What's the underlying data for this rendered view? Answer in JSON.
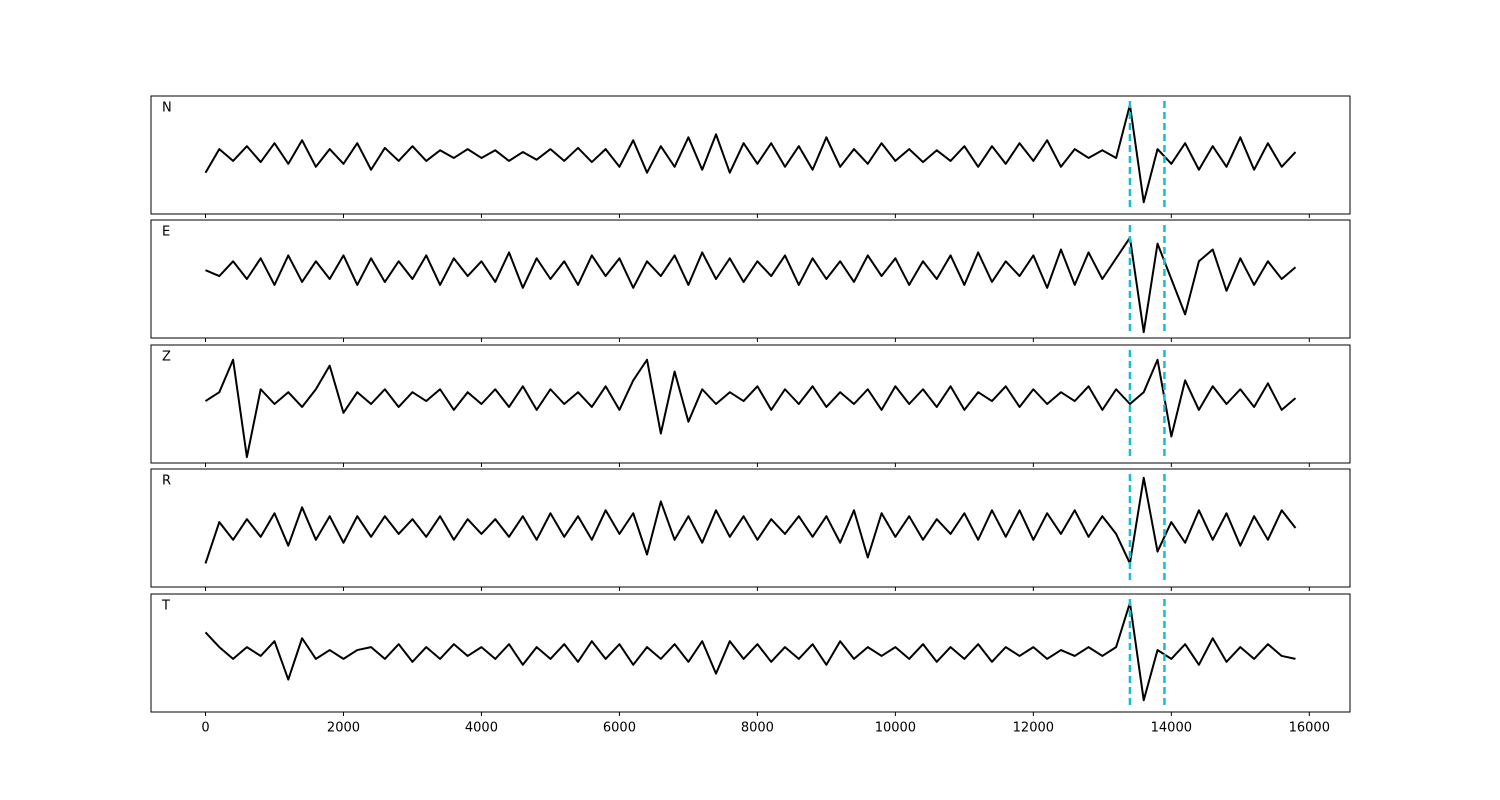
{
  "chart_data": {
    "type": "line",
    "xlim": [
      -790,
      16590
    ],
    "xticks": [
      0,
      2000,
      4000,
      6000,
      8000,
      10000,
      12000,
      14000,
      16000
    ],
    "ylim": [
      -1,
      1
    ],
    "color": "#000000",
    "vlines": [
      13400,
      13900
    ],
    "vline_color": "#17becf",
    "x": [
      0,
      200,
      400,
      600,
      800,
      1000,
      1200,
      1400,
      1600,
      1800,
      2000,
      2200,
      2400,
      2600,
      2800,
      3000,
      3200,
      3400,
      3600,
      3800,
      4000,
      4200,
      4400,
      4600,
      4800,
      5000,
      5200,
      5400,
      5600,
      5800,
      6000,
      6200,
      6400,
      6600,
      6800,
      7000,
      7200,
      7400,
      7600,
      7800,
      8000,
      8200,
      8400,
      8600,
      8800,
      9000,
      9200,
      9400,
      9600,
      9800,
      10000,
      10200,
      10400,
      10600,
      10800,
      11000,
      11200,
      11400,
      11600,
      11800,
      12000,
      12200,
      12400,
      12600,
      12800,
      13000,
      13200,
      13400,
      13600,
      13800,
      14000,
      14200,
      14400,
      14600,
      14800,
      15000,
      15200,
      15400,
      15600,
      15800
    ],
    "series": [
      {
        "name": "N",
        "values": [
          -0.3,
          0.1,
          -0.1,
          0.15,
          -0.12,
          0.2,
          -0.15,
          0.25,
          -0.2,
          0.1,
          -0.15,
          0.2,
          -0.25,
          0.12,
          -0.1,
          0.15,
          -0.1,
          0.08,
          -0.05,
          0.1,
          -0.05,
          0.08,
          -0.1,
          0.05,
          -0.08,
          0.1,
          -0.1,
          0.12,
          -0.12,
          0.1,
          -0.2,
          0.25,
          -0.3,
          0.15,
          -0.2,
          0.3,
          -0.25,
          0.35,
          -0.3,
          0.2,
          -0.15,
          0.2,
          -0.2,
          0.15,
          -0.25,
          0.3,
          -0.2,
          0.1,
          -0.15,
          0.2,
          -0.1,
          0.1,
          -0.12,
          0.08,
          -0.1,
          0.15,
          -0.2,
          0.15,
          -0.15,
          0.2,
          -0.1,
          0.25,
          -0.2,
          0.1,
          -0.05,
          0.08,
          -0.05,
          0.85,
          -0.8,
          0.1,
          -0.15,
          0.2,
          -0.25,
          0.15,
          -0.2,
          0.3,
          -0.25,
          0.2,
          -0.2,
          0.05
        ]
      },
      {
        "name": "E",
        "values": [
          0.15,
          0.05,
          0.3,
          0,
          0.35,
          -0.1,
          0.4,
          -0.05,
          0.3,
          0,
          0.4,
          -0.1,
          0.35,
          -0.05,
          0.3,
          0,
          0.4,
          -0.1,
          0.35,
          0.05,
          0.3,
          -0.05,
          0.45,
          -0.15,
          0.35,
          0,
          0.3,
          -0.1,
          0.4,
          0.05,
          0.35,
          -0.15,
          0.3,
          0.05,
          0.4,
          -0.1,
          0.45,
          0,
          0.35,
          -0.05,
          0.3,
          0.05,
          0.4,
          -0.1,
          0.35,
          0,
          0.3,
          -0.05,
          0.4,
          0.05,
          0.35,
          -0.1,
          0.3,
          0,
          0.4,
          -0.1,
          0.45,
          -0.05,
          0.3,
          0.05,
          0.4,
          -0.15,
          0.5,
          -0.1,
          0.45,
          0,
          0.35,
          0.7,
          -0.9,
          0.6,
          0,
          -0.6,
          0.3,
          0.5,
          -0.2,
          0.35,
          -0.1,
          0.3,
          0,
          0.2
        ]
      },
      {
        "name": "Z",
        "values": [
          0.05,
          0.2,
          0.75,
          -0.9,
          0.25,
          0,
          0.2,
          -0.05,
          0.25,
          0.65,
          -0.15,
          0.2,
          0,
          0.25,
          -0.05,
          0.2,
          0.05,
          0.25,
          -0.1,
          0.2,
          0,
          0.25,
          -0.05,
          0.3,
          -0.1,
          0.25,
          0,
          0.2,
          -0.05,
          0.3,
          -0.1,
          0.4,
          0.75,
          -0.5,
          0.55,
          -0.3,
          0.25,
          0,
          0.2,
          0.05,
          0.3,
          -0.1,
          0.25,
          0,
          0.3,
          -0.05,
          0.2,
          0,
          0.25,
          -0.1,
          0.3,
          0,
          0.25,
          -0.05,
          0.3,
          -0.1,
          0.2,
          0.05,
          0.3,
          -0.05,
          0.25,
          0,
          0.2,
          0.05,
          0.3,
          -0.1,
          0.25,
          0,
          0.2,
          0.75,
          -0.55,
          0.4,
          -0.1,
          0.3,
          0,
          0.25,
          -0.05,
          0.35,
          -0.1,
          0.1
        ]
      },
      {
        "name": "R",
        "values": [
          -0.6,
          0.1,
          -0.2,
          0.15,
          -0.15,
          0.25,
          -0.3,
          0.35,
          -0.2,
          0.2,
          -0.25,
          0.2,
          -0.15,
          0.2,
          -0.1,
          0.15,
          -0.15,
          0.2,
          -0.2,
          0.15,
          -0.1,
          0.15,
          -0.15,
          0.2,
          -0.2,
          0.25,
          -0.15,
          0.2,
          -0.2,
          0.3,
          -0.1,
          0.25,
          -0.45,
          0.45,
          -0.2,
          0.2,
          -0.25,
          0.3,
          -0.15,
          0.2,
          -0.2,
          0.15,
          -0.1,
          0.2,
          -0.15,
          0.2,
          -0.25,
          0.3,
          -0.5,
          0.25,
          -0.15,
          0.2,
          -0.2,
          0.15,
          -0.1,
          0.25,
          -0.2,
          0.3,
          -0.15,
          0.3,
          -0.2,
          0.25,
          -0.1,
          0.3,
          -0.15,
          0.2,
          -0.1,
          -0.6,
          0.85,
          -0.4,
          0.1,
          -0.25,
          0.3,
          -0.2,
          0.25,
          -0.3,
          0.2,
          -0.2,
          0.3,
          0
        ]
      },
      {
        "name": "T",
        "values": [
          0.35,
          0.1,
          -0.1,
          0.1,
          -0.05,
          0.2,
          -0.45,
          0.25,
          -0.1,
          0.05,
          -0.1,
          0.05,
          0.1,
          -0.1,
          0.15,
          -0.15,
          0.1,
          -0.1,
          0.15,
          -0.05,
          0.1,
          -0.1,
          0.15,
          -0.2,
          0.1,
          -0.1,
          0.15,
          -0.15,
          0.2,
          -0.1,
          0.15,
          -0.2,
          0.1,
          -0.1,
          0.15,
          -0.15,
          0.2,
          -0.35,
          0.2,
          -0.1,
          0.15,
          -0.15,
          0.1,
          -0.1,
          0.15,
          -0.2,
          0.2,
          -0.1,
          0.1,
          -0.05,
          0.1,
          -0.1,
          0.15,
          -0.15,
          0.1,
          -0.1,
          0.15,
          -0.15,
          0.1,
          -0.05,
          0.1,
          -0.1,
          0.05,
          -0.05,
          0.1,
          -0.05,
          0.1,
          0.85,
          -0.8,
          0.05,
          -0.1,
          0.15,
          -0.2,
          0.25,
          -0.15,
          0.1,
          -0.1,
          0.15,
          -0.05,
          -0.1
        ]
      }
    ]
  }
}
